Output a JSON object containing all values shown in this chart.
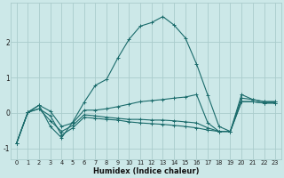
{
  "xlabel": "Humidex (Indice chaleur)",
  "bg_color": "#cce8e8",
  "grid_color": "#aacccc",
  "line_color": "#1a6b6b",
  "xlim": [
    -0.5,
    23.5
  ],
  "ylim": [
    -1.3,
    3.1
  ],
  "yticks": [
    -1,
    0,
    1,
    2
  ],
  "xtick_labels": [
    "0",
    "1",
    "2",
    "3",
    "4",
    "5",
    "6",
    "7",
    "8",
    "9",
    "10",
    "11",
    "12",
    "13",
    "14",
    "15",
    "16",
    "17",
    "18",
    "19",
    "20",
    "21",
    "22",
    "23"
  ],
  "lines": [
    {
      "x": [
        0,
        1,
        2,
        3,
        4,
        5,
        6,
        7,
        8,
        9,
        10,
        11,
        12,
        13,
        14,
        15,
        16,
        17,
        18,
        19,
        20,
        21,
        22,
        23
      ],
      "y": [
        -0.85,
        0.02,
        0.22,
        -0.38,
        -0.7,
        -0.25,
        0.3,
        0.78,
        0.95,
        1.55,
        2.08,
        2.45,
        2.55,
        2.72,
        2.48,
        2.12,
        1.38,
        0.5,
        -0.38,
        -0.52,
        0.52,
        0.38,
        0.32,
        0.32
      ]
    },
    {
      "x": [
        0,
        1,
        2,
        3,
        4,
        5,
        6,
        7,
        8,
        9,
        10,
        11,
        12,
        13,
        14,
        15,
        16,
        17,
        18,
        19,
        20,
        21,
        22,
        23
      ],
      "y": [
        -0.85,
        0.02,
        0.22,
        0.05,
        -0.38,
        -0.28,
        0.08,
        0.08,
        0.12,
        0.18,
        0.25,
        0.32,
        0.35,
        0.38,
        0.42,
        0.45,
        0.52,
        -0.28,
        -0.52,
        -0.52,
        0.42,
        0.38,
        0.32,
        0.32
      ]
    },
    {
      "x": [
        0,
        1,
        2,
        3,
        4,
        5,
        6,
        7,
        8,
        9,
        10,
        11,
        12,
        13,
        14,
        15,
        16,
        17,
        18,
        19,
        20,
        21,
        22,
        23
      ],
      "y": [
        -0.85,
        0.02,
        0.12,
        -0.22,
        -0.52,
        -0.35,
        -0.05,
        -0.08,
        -0.12,
        -0.15,
        -0.18,
        -0.18,
        -0.2,
        -0.2,
        -0.22,
        -0.25,
        -0.28,
        -0.42,
        -0.52,
        -0.52,
        0.32,
        0.32,
        0.28,
        0.28
      ]
    },
    {
      "x": [
        0,
        1,
        2,
        3,
        4,
        5,
        6,
        7,
        8,
        9,
        10,
        11,
        12,
        13,
        14,
        15,
        16,
        17,
        18,
        19,
        20,
        21,
        22,
        23
      ],
      "y": [
        -0.85,
        0.02,
        0.12,
        -0.08,
        -0.62,
        -0.42,
        -0.12,
        -0.15,
        -0.18,
        -0.2,
        -0.25,
        -0.28,
        -0.3,
        -0.32,
        -0.35,
        -0.38,
        -0.42,
        -0.48,
        -0.52,
        -0.52,
        0.32,
        0.32,
        0.28,
        0.28
      ]
    }
  ]
}
